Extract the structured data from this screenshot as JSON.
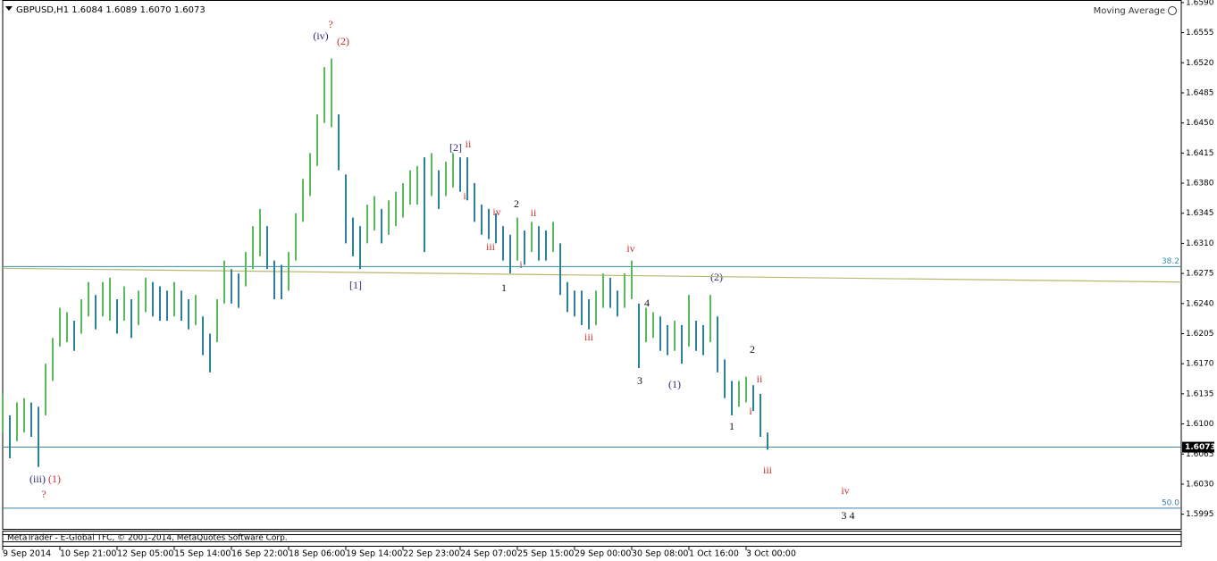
{
  "chart_data": {
    "type": "hilo",
    "header": "GBPUSD,H1  1.6084 1.6089 1.6070 1.6073",
    "indicator": "Moving Average",
    "footer": "MetaTrader - E-Global TFC, © 2001-2014, MetaQuotes Software Corp.",
    "up_color": "#5cb85c",
    "down_color": "#2b7f96",
    "xlim": [
      0,
      659.5
    ],
    "ylim": [
      1.5978,
      1.6593
    ],
    "xticks": [
      {
        "value": 0,
        "label": "9 Sep 2014"
      },
      {
        "value": 32,
        "label": "10 Sep 21:00"
      },
      {
        "value": 64,
        "label": "12 Sep 05:00"
      },
      {
        "value": 96,
        "label": "15 Sep 14:00"
      },
      {
        "value": 128,
        "label": "16 Sep 22:00"
      },
      {
        "value": 160,
        "label": "18 Sep 06:00"
      },
      {
        "value": 192,
        "label": "19 Sep 14:00"
      },
      {
        "value": 224,
        "label": "22 Sep 23:00"
      },
      {
        "value": 256,
        "label": "24 Sep 07:00"
      },
      {
        "value": 288,
        "label": "25 Sep 15:00"
      },
      {
        "value": 320,
        "label": "29 Sep 00:00"
      },
      {
        "value": 352,
        "label": "30 Sep 08:00"
      },
      {
        "value": 384,
        "label": "1 Oct 16:00"
      },
      {
        "value": 416,
        "label": "3 Oct 00:00"
      }
    ],
    "yticks": [
      {
        "value": 1.659,
        "label": "1.6590"
      },
      1.6555,
      {
        "value": 1.652,
        "label": "1.6520"
      },
      1.6485,
      {
        "value": 1.645,
        "label": "1.6450"
      },
      1.6415,
      {
        "value": 1.638,
        "label": "1.6380"
      },
      1.6345,
      {
        "value": 1.631,
        "label": "1.6310"
      },
      1.6275,
      {
        "value": 1.624,
        "label": "1.6240"
      },
      1.6205,
      {
        "value": 1.617,
        "label": "1.6170"
      },
      1.6135,
      {
        "value": 1.61,
        "label": "1.6100"
      },
      1.6065,
      {
        "value": 1.603,
        "label": "1.6030"
      },
      1.5995
    ],
    "x": [
      0,
      4,
      8,
      12,
      16,
      20,
      24,
      28,
      32,
      36,
      40,
      44,
      48,
      52,
      56,
      60,
      64,
      68,
      72,
      76,
      80,
      84,
      88,
      92,
      96,
      100,
      104,
      108,
      112,
      116,
      120,
      124,
      128,
      132,
      136,
      140,
      144,
      148,
      152,
      156,
      160,
      164,
      168,
      172,
      176,
      180,
      184,
      188,
      192,
      196,
      200,
      204,
      208,
      212,
      216,
      220,
      224,
      228,
      232,
      236,
      240,
      244,
      248,
      252,
      256,
      260,
      264,
      268,
      272,
      276,
      280,
      284,
      288,
      292,
      296,
      300,
      304,
      308,
      312,
      316,
      320,
      324,
      328,
      332,
      336,
      340,
      344,
      348,
      352,
      356,
      360,
      364,
      368,
      372,
      376,
      380,
      384,
      388,
      392,
      396,
      400,
      404,
      408,
      412,
      416,
      420,
      424,
      428
    ],
    "high": [
      1.6135,
      1.611,
      1.6125,
      1.613,
      1.6125,
      1.612,
      1.617,
      1.62,
      1.6235,
      1.623,
      1.622,
      1.6245,
      1.6265,
      1.625,
      1.6265,
      1.627,
      1.6245,
      1.626,
      1.6245,
      1.6255,
      1.627,
      1.6265,
      1.626,
      1.6255,
      1.6265,
      1.6255,
      1.6245,
      1.625,
      1.6225,
      1.6205,
      1.6245,
      1.629,
      1.628,
      1.6275,
      1.63,
      1.633,
      1.635,
      1.633,
      1.629,
      1.6285,
      1.63,
      1.6345,
      1.6385,
      1.6415,
      1.646,
      1.6515,
      1.6525,
      1.646,
      1.639,
      1.634,
      1.633,
      1.6355,
      1.6365,
      1.635,
      1.636,
      1.637,
      1.638,
      1.6395,
      1.64,
      1.641,
      1.6415,
      1.6395,
      1.6405,
      1.6415,
      1.641,
      1.641,
      1.638,
      1.6355,
      1.635,
      1.6345,
      1.633,
      1.632,
      1.634,
      1.6325,
      1.6335,
      1.633,
      1.6325,
      1.6335,
      1.631,
      1.6265,
      1.6255,
      1.6255,
      1.6245,
      1.6255,
      1.6275,
      1.627,
      1.6255,
      1.6275,
      1.629,
      1.624,
      1.6235,
      1.623,
      1.6225,
      1.6215,
      1.622,
      1.6215,
      1.625,
      1.622,
      1.6215,
      1.625,
      1.6225,
      1.6175,
      1.615,
      1.615,
      1.6155,
      1.6145,
      1.6135,
      1.609
    ],
    "low": [
      1.609,
      1.606,
      1.608,
      1.609,
      1.6085,
      1.605,
      1.611,
      1.615,
      1.619,
      1.6195,
      1.6185,
      1.6205,
      1.6225,
      1.621,
      1.6225,
      1.622,
      1.6205,
      1.622,
      1.62,
      1.6215,
      1.623,
      1.6225,
      1.622,
      1.622,
      1.6225,
      1.622,
      1.621,
      1.6215,
      1.618,
      1.616,
      1.6195,
      1.624,
      1.624,
      1.6235,
      1.626,
      1.628,
      1.6295,
      1.628,
      1.6245,
      1.6245,
      1.6255,
      1.629,
      1.6335,
      1.6365,
      1.64,
      1.645,
      1.6445,
      1.6395,
      1.631,
      1.6295,
      1.628,
      1.631,
      1.6325,
      1.631,
      1.632,
      1.633,
      1.634,
      1.6355,
      1.6355,
      1.63,
      1.6365,
      1.635,
      1.6365,
      1.6375,
      1.637,
      1.636,
      1.6335,
      1.632,
      1.6315,
      1.631,
      1.629,
      1.6275,
      1.629,
      1.6285,
      1.63,
      1.629,
      1.629,
      1.63,
      1.625,
      1.623,
      1.6225,
      1.6215,
      1.621,
      1.6215,
      1.6235,
      1.6235,
      1.6225,
      1.6235,
      1.6245,
      1.6165,
      1.6195,
      1.62,
      1.6185,
      1.618,
      1.6185,
      1.617,
      1.619,
      1.6185,
      1.618,
      1.6195,
      1.616,
      1.613,
      1.611,
      1.612,
      1.6125,
      1.6115,
      1.6085,
      1.607
    ],
    "moving_average": {
      "color": "#b8b870",
      "x": [
        0,
        659.5
      ],
      "values": [
        1.6281,
        1.6265
      ]
    },
    "levels": [
      {
        "value": 1.6283,
        "label": "38.2",
        "color": "#3a8fa3"
      },
      {
        "value": 1.6002,
        "label": "50.0",
        "color": "#3a7fa3"
      }
    ],
    "last_price": 1.6073,
    "last_price_color": "#4a7fa8",
    "annotations": [
      "?",
      "(iv)",
      "(2)",
      "[2]",
      "ii",
      "i",
      "2",
      "iv",
      "ii",
      "iii",
      "i",
      "1",
      "[1]",
      "iv",
      "(2)",
      "4",
      "iii",
      "3",
      "(1)",
      "2",
      "ii",
      "i",
      "1",
      "iii",
      "iv",
      "3 4",
      "(iii)",
      "(1)",
      "?"
    ]
  }
}
